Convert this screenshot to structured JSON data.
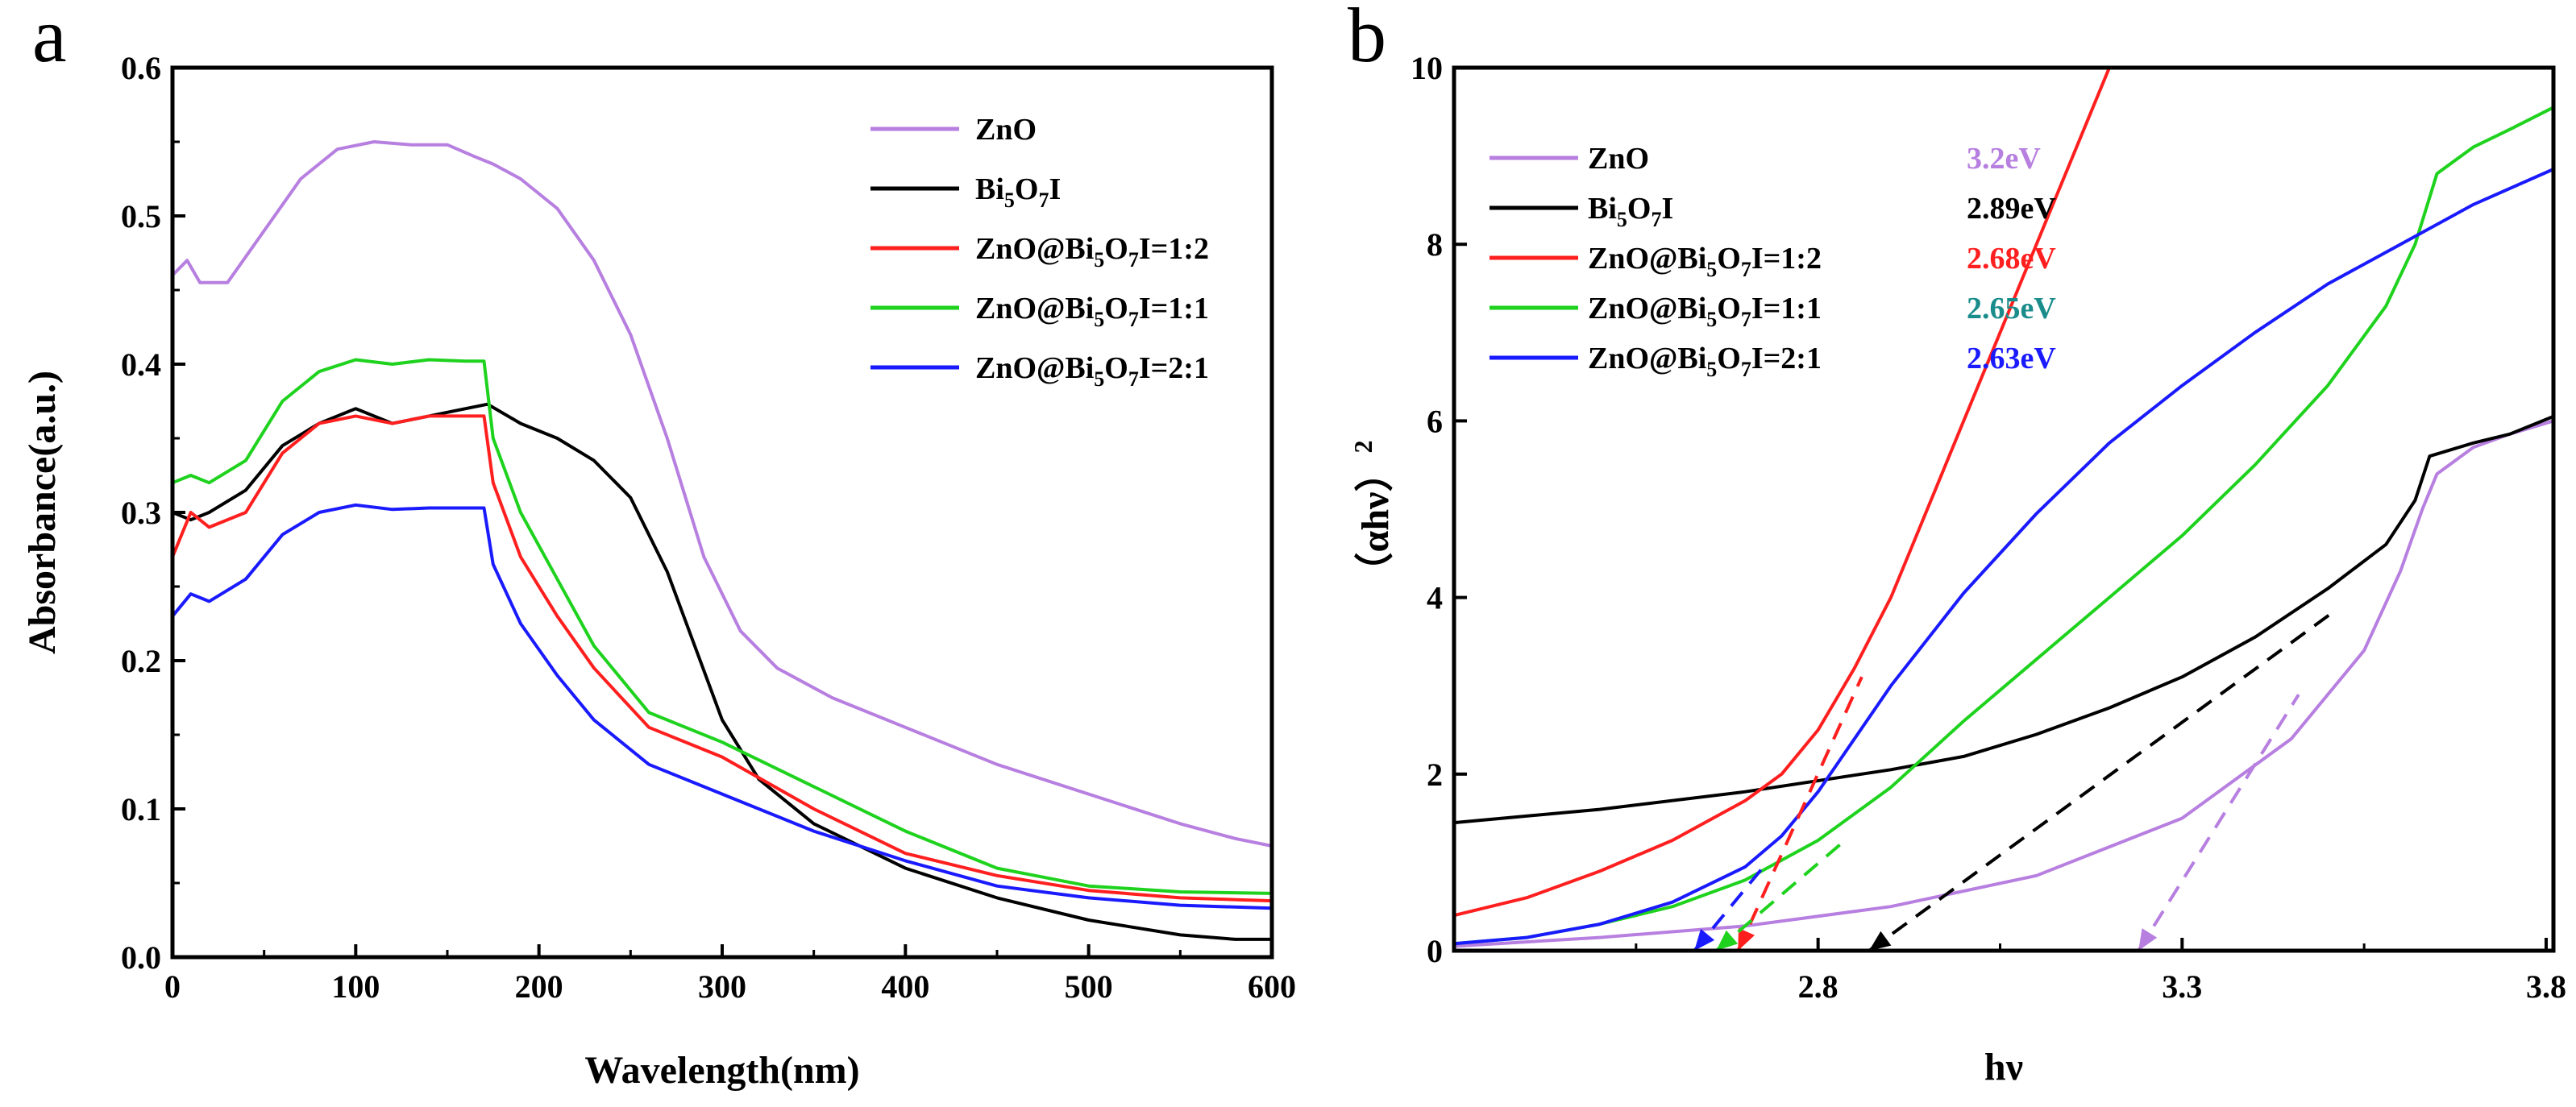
{
  "chart_data": [
    {
      "panel_label": "a",
      "type": "line",
      "title": "",
      "xlabel": "Wavelength(nm)",
      "ylabel": "Absorbance(a.u.)",
      "xlim": [
        0,
        600
      ],
      "ylim": [
        0.0,
        0.6
      ],
      "xticks": [
        0,
        100,
        200,
        300,
        400,
        500,
        600
      ],
      "xtick_labels": [
        "0",
        "100",
        "200",
        "300",
        "400",
        "500",
        "600"
      ],
      "yticks": [
        0.0,
        0.1,
        0.2,
        0.3,
        0.4,
        0.5,
        0.6
      ],
      "ytick_labels": [
        "0.0",
        "0.1",
        "0.2",
        "0.3",
        "0.4",
        "0.5",
        "0.6"
      ],
      "grid": false,
      "legend_position": "top-right",
      "series": [
        {
          "name": "ZnO",
          "label_parts": [
            "ZnO"
          ],
          "color": "#b77fe0",
          "x": [
            0,
            8,
            15,
            30,
            50,
            70,
            90,
            110,
            130,
            150,
            165,
            175,
            190,
            210,
            230,
            250,
            270,
            290,
            310,
            330,
            360,
            400,
            450,
            500,
            550,
            580,
            600
          ],
          "y": [
            0.46,
            0.47,
            0.455,
            0.455,
            0.49,
            0.525,
            0.545,
            0.55,
            0.548,
            0.548,
            0.54,
            0.535,
            0.525,
            0.505,
            0.47,
            0.42,
            0.35,
            0.27,
            0.22,
            0.195,
            0.175,
            0.155,
            0.13,
            0.11,
            0.09,
            0.08,
            0.075
          ]
        },
        {
          "name": "Bi5O7I",
          "label_parts": [
            "Bi",
            "5",
            "O",
            "7",
            "I"
          ],
          "color": "#000000",
          "x": [
            0,
            10,
            20,
            40,
            60,
            80,
            100,
            120,
            140,
            160,
            172,
            190,
            210,
            230,
            250,
            270,
            285,
            300,
            320,
            350,
            400,
            450,
            500,
            550,
            580,
            600
          ],
          "y": [
            0.3,
            0.295,
            0.3,
            0.315,
            0.345,
            0.36,
            0.37,
            0.36,
            0.365,
            0.37,
            0.373,
            0.36,
            0.35,
            0.335,
            0.31,
            0.26,
            0.21,
            0.16,
            0.12,
            0.09,
            0.06,
            0.04,
            0.025,
            0.015,
            0.012,
            0.012
          ]
        },
        {
          "name": "ZnO@Bi5O7I=1:2",
          "label_parts": [
            "ZnO@Bi",
            "5",
            "O",
            "7",
            "I=1:2"
          ],
          "color": "#ff1f1f",
          "x": [
            0,
            10,
            20,
            40,
            60,
            80,
            100,
            120,
            140,
            160,
            170,
            175,
            190,
            210,
            230,
            260,
            300,
            350,
            400,
            450,
            500,
            550,
            600
          ],
          "y": [
            0.27,
            0.3,
            0.29,
            0.3,
            0.34,
            0.36,
            0.365,
            0.36,
            0.365,
            0.365,
            0.365,
            0.32,
            0.27,
            0.23,
            0.195,
            0.155,
            0.135,
            0.1,
            0.07,
            0.055,
            0.045,
            0.04,
            0.038
          ]
        },
        {
          "name": "ZnO@Bi5O7I=1:1",
          "label_parts": [
            "ZnO@Bi",
            "5",
            "O",
            "7",
            "I=1:1"
          ],
          "color": "#1ed21e",
          "x": [
            0,
            10,
            20,
            40,
            60,
            80,
            100,
            120,
            140,
            160,
            170,
            175,
            190,
            210,
            230,
            260,
            300,
            350,
            400,
            450,
            500,
            550,
            600
          ],
          "y": [
            0.32,
            0.325,
            0.32,
            0.335,
            0.375,
            0.395,
            0.403,
            0.4,
            0.403,
            0.402,
            0.402,
            0.35,
            0.3,
            0.255,
            0.21,
            0.165,
            0.145,
            0.115,
            0.085,
            0.06,
            0.048,
            0.044,
            0.043
          ]
        },
        {
          "name": "ZnO@Bi5O7I=2:1",
          "label_parts": [
            "ZnO@Bi",
            "5",
            "O",
            "7",
            "I=2:1"
          ],
          "color": "#1a1aff",
          "x": [
            0,
            10,
            20,
            40,
            60,
            80,
            100,
            120,
            140,
            160,
            170,
            175,
            190,
            210,
            230,
            260,
            300,
            350,
            400,
            450,
            500,
            550,
            600
          ],
          "y": [
            0.23,
            0.245,
            0.24,
            0.255,
            0.285,
            0.3,
            0.305,
            0.302,
            0.303,
            0.303,
            0.303,
            0.265,
            0.225,
            0.19,
            0.16,
            0.13,
            0.11,
            0.085,
            0.065,
            0.048,
            0.04,
            0.035,
            0.033
          ]
        }
      ]
    },
    {
      "panel_label": "b",
      "type": "line",
      "title": "",
      "xlabel": "hν",
      "ylabel": "（αhν）²",
      "ylabel_parts": [
        "（αhν）",
        "2"
      ],
      "xlim": [
        2.3,
        3.81
      ],
      "ylim": [
        0,
        10
      ],
      "xticks": [
        2.8,
        3.3,
        3.8
      ],
      "xtick_labels": [
        "2.8",
        "3.3",
        "3.8"
      ],
      "yticks": [
        0,
        2,
        4,
        6,
        8,
        10
      ],
      "ytick_labels": [
        "0",
        "2",
        "4",
        "6",
        "8",
        "10"
      ],
      "grid": false,
      "legend_position": "top-left",
      "series": [
        {
          "name": "ZnO",
          "label_parts": [
            "ZnO"
          ],
          "color": "#b77fe0",
          "band_gap": "3.2eV",
          "gap_color": "#b77fe0",
          "x": [
            2.3,
            2.5,
            2.7,
            2.9,
            3.1,
            3.3,
            3.45,
            3.55,
            3.6,
            3.63,
            3.65,
            3.7,
            3.75,
            3.81
          ],
          "y": [
            0.05,
            0.15,
            0.28,
            0.5,
            0.85,
            1.5,
            2.4,
            3.4,
            4.3,
            5.0,
            5.4,
            5.7,
            5.85,
            6.0
          ]
        },
        {
          "name": "Bi5O7I",
          "label_parts": [
            "Bi",
            "5",
            "O",
            "7",
            "I"
          ],
          "color": "#000000",
          "band_gap": "2.89eV",
          "gap_color": "#000000",
          "x": [
            2.3,
            2.5,
            2.7,
            2.9,
            3.0,
            3.1,
            3.2,
            3.3,
            3.4,
            3.5,
            3.58,
            3.62,
            3.64,
            3.7,
            3.75,
            3.81
          ],
          "y": [
            1.45,
            1.6,
            1.8,
            2.05,
            2.2,
            2.45,
            2.75,
            3.1,
            3.55,
            4.1,
            4.6,
            5.1,
            5.6,
            5.75,
            5.85,
            6.05
          ]
        },
        {
          "name": "ZnO@Bi5O7I=1:2",
          "label_parts": [
            "ZnO@Bi",
            "5",
            "O",
            "7",
            "I=1:2"
          ],
          "color": "#ff1f1f",
          "band_gap": "2.68eV",
          "gap_color": "#ff1f1f",
          "x": [
            2.3,
            2.4,
            2.5,
            2.6,
            2.7,
            2.75,
            2.8,
            2.85,
            2.9,
            2.95,
            3.0,
            3.05,
            3.1,
            3.15,
            3.2
          ],
          "y": [
            0.4,
            0.6,
            0.9,
            1.25,
            1.7,
            2.0,
            2.5,
            3.2,
            4.0,
            5.0,
            6.0,
            7.0,
            8.0,
            9.0,
            10.0
          ]
        },
        {
          "name": "ZnO@Bi5O7I=1:1",
          "label_parts": [
            "ZnO@Bi",
            "5",
            "O",
            "7",
            "I=1:1"
          ],
          "color": "#1ed21e",
          "band_gap": "2.65eV",
          "gap_color": "#1a8c8c",
          "x": [
            2.3,
            2.4,
            2.5,
            2.6,
            2.7,
            2.8,
            2.9,
            3.0,
            3.1,
            3.2,
            3.3,
            3.4,
            3.5,
            3.58,
            3.62,
            3.65,
            3.7,
            3.75,
            3.81
          ],
          "y": [
            0.08,
            0.15,
            0.3,
            0.5,
            0.8,
            1.25,
            1.85,
            2.6,
            3.3,
            4.0,
            4.7,
            5.5,
            6.4,
            7.3,
            8.0,
            8.8,
            9.1,
            9.3,
            9.55
          ]
        },
        {
          "name": "ZnO@Bi5O7I=2:1",
          "label_parts": [
            "ZnO@Bi",
            "5",
            "O",
            "7",
            "I=2:1"
          ],
          "color": "#1a1aff",
          "band_gap": "2.63eV",
          "gap_color": "#1a1aff",
          "x": [
            2.3,
            2.4,
            2.5,
            2.6,
            2.7,
            2.75,
            2.8,
            2.85,
            2.9,
            3.0,
            3.1,
            3.2,
            3.3,
            3.4,
            3.5,
            3.6,
            3.7,
            3.81
          ],
          "y": [
            0.08,
            0.15,
            0.3,
            0.55,
            0.95,
            1.3,
            1.8,
            2.4,
            3.0,
            4.05,
            4.95,
            5.75,
            6.4,
            7.0,
            7.55,
            8.0,
            8.45,
            8.85
          ]
        }
      ],
      "tangent_lines": [
        {
          "series": "ZnO",
          "color": "#b77fe0",
          "from": [
            3.24,
            0
          ],
          "to": [
            3.46,
            2.9
          ]
        },
        {
          "series": "Bi5O7I",
          "color": "#000000",
          "from": [
            2.87,
            0
          ],
          "to": [
            3.51,
            3.85
          ]
        },
        {
          "series": "ZnO@Bi5O7I=1:2",
          "color": "#ff1f1f",
          "from": [
            2.69,
            0
          ],
          "to": [
            2.86,
            3.1
          ]
        },
        {
          "series": "ZnO@Bi5O7I=1:1",
          "color": "#1ed21e",
          "from": [
            2.66,
            0
          ],
          "to": [
            2.83,
            1.2
          ]
        },
        {
          "series": "ZnO@Bi5O7I=2:1",
          "color": "#1a1aff",
          "from": [
            2.63,
            0
          ],
          "to": [
            2.73,
            1.0
          ]
        }
      ]
    }
  ]
}
